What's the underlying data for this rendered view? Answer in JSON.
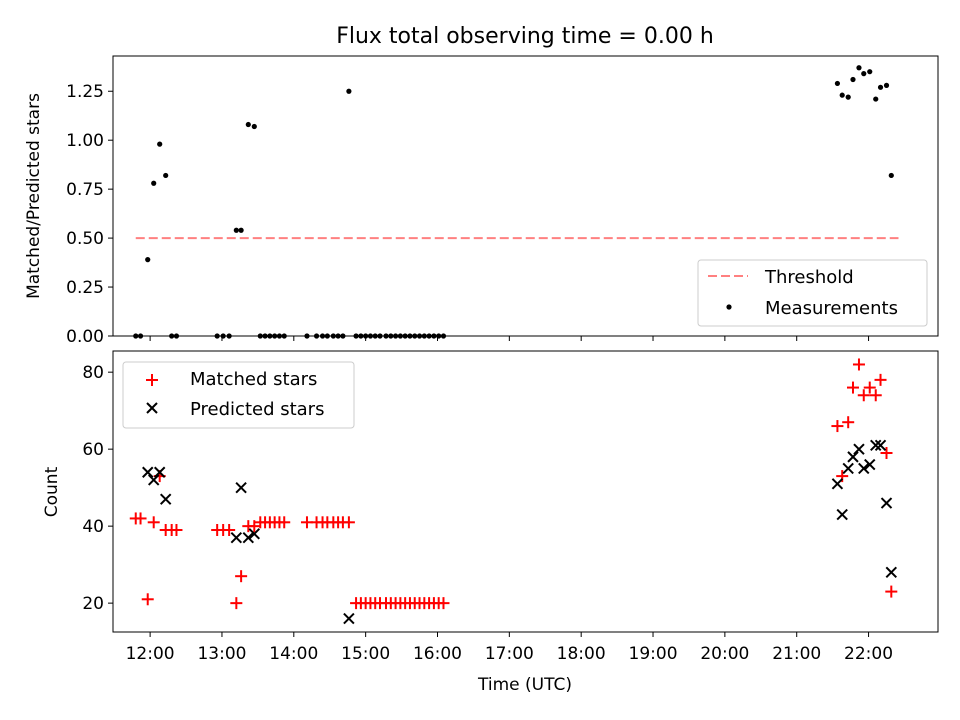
{
  "figure": {
    "title": "Flux total observing time = 0.00 h"
  },
  "chart_data": [
    {
      "type": "scatter",
      "title": "Flux total observing time = 0.00 h",
      "xlabel": "",
      "ylabel": "Matched/Predicted stars",
      "xlim": [
        "11:29",
        "22:58"
      ],
      "ylim": [
        0.0,
        1.43
      ],
      "yticks": [
        "0.00",
        "0.25",
        "0.50",
        "0.75",
        "1.00",
        "1.25"
      ],
      "legend_position": "lower right",
      "grid": false,
      "threshold": {
        "name": "Threshold",
        "value": 0.5,
        "x_range": [
          "11:48",
          "22:25"
        ],
        "color": "#ff8080",
        "style": "dashed"
      },
      "series": [
        {
          "name": "Measurements",
          "marker": "dot",
          "color": "#000000",
          "points": [
            [
              "11:48",
              0.0
            ],
            [
              "11:52",
              0.0
            ],
            [
              "11:58",
              0.39
            ],
            [
              "12:03",
              0.78
            ],
            [
              "12:08",
              0.98
            ],
            [
              "12:13",
              0.82
            ],
            [
              "12:18",
              0.0
            ],
            [
              "12:22",
              0.0
            ],
            [
              "12:56",
              0.0
            ],
            [
              "13:01",
              0.0
            ],
            [
              "13:06",
              0.0
            ],
            [
              "13:12",
              0.54
            ],
            [
              "13:16",
              0.54
            ],
            [
              "13:22",
              1.08
            ],
            [
              "13:27",
              1.07
            ],
            [
              "13:32",
              0.0
            ],
            [
              "13:36",
              0.0
            ],
            [
              "13:40",
              0.0
            ],
            [
              "13:44",
              0.0
            ],
            [
              "13:48",
              0.0
            ],
            [
              "13:52",
              0.0
            ],
            [
              "14:11",
              0.0
            ],
            [
              "14:19",
              0.0
            ],
            [
              "14:24",
              0.0
            ],
            [
              "14:28",
              0.0
            ],
            [
              "14:33",
              0.0
            ],
            [
              "14:37",
              0.0
            ],
            [
              "14:41",
              0.0
            ],
            [
              "14:46",
              1.25
            ],
            [
              "14:52",
              0.0
            ],
            [
              "14:56",
              0.0
            ],
            [
              "15:00",
              0.0
            ],
            [
              "15:04",
              0.0
            ],
            [
              "15:08",
              0.0
            ],
            [
              "15:12",
              0.0
            ],
            [
              "15:17",
              0.0
            ],
            [
              "15:21",
              0.0
            ],
            [
              "15:25",
              0.0
            ],
            [
              "15:29",
              0.0
            ],
            [
              "15:33",
              0.0
            ],
            [
              "15:37",
              0.0
            ],
            [
              "15:41",
              0.0
            ],
            [
              "15:45",
              0.0
            ],
            [
              "15:49",
              0.0
            ],
            [
              "15:53",
              0.0
            ],
            [
              "15:57",
              0.0
            ],
            [
              "16:01",
              0.0
            ],
            [
              "16:05",
              0.0
            ],
            [
              "21:34",
              1.29
            ],
            [
              "21:38",
              1.23
            ],
            [
              "21:43",
              1.22
            ],
            [
              "21:47",
              1.31
            ],
            [
              "21:52",
              1.37
            ],
            [
              "21:56",
              1.34
            ],
            [
              "22:01",
              1.35
            ],
            [
              "22:06",
              1.21
            ],
            [
              "22:10",
              1.27
            ],
            [
              "22:15",
              1.28
            ],
            [
              "22:19",
              0.82
            ]
          ]
        }
      ]
    },
    {
      "type": "scatter",
      "title": "",
      "xlabel": "Time (UTC)",
      "ylabel": "Count",
      "xlim": [
        "11:29",
        "22:58"
      ],
      "ylim": [
        12.5,
        85.5
      ],
      "yticks": [
        "20",
        "40",
        "60",
        "80"
      ],
      "xticks": [
        "12:00",
        "13:00",
        "14:00",
        "15:00",
        "16:00",
        "17:00",
        "18:00",
        "19:00",
        "20:00",
        "21:00",
        "22:00"
      ],
      "legend_position": "upper left",
      "grid": false,
      "series": [
        {
          "name": "Matched stars",
          "marker": "plus",
          "color": "#ff0000",
          "points": [
            [
              "11:48",
              42
            ],
            [
              "11:52",
              42
            ],
            [
              "11:58",
              21
            ],
            [
              "12:03",
              41
            ],
            [
              "12:08",
              53
            ],
            [
              "12:13",
              39
            ],
            [
              "12:18",
              39
            ],
            [
              "12:22",
              39
            ],
            [
              "12:56",
              39
            ],
            [
              "13:01",
              39
            ],
            [
              "13:06",
              39
            ],
            [
              "13:12",
              20
            ],
            [
              "13:16",
              27
            ],
            [
              "13:22",
              40
            ],
            [
              "13:27",
              40
            ],
            [
              "13:32",
              41
            ],
            [
              "13:36",
              41
            ],
            [
              "13:40",
              41
            ],
            [
              "13:44",
              41
            ],
            [
              "13:48",
              41
            ],
            [
              "13:52",
              41
            ],
            [
              "14:11",
              41
            ],
            [
              "14:19",
              41
            ],
            [
              "14:24",
              41
            ],
            [
              "14:28",
              41
            ],
            [
              "14:33",
              41
            ],
            [
              "14:37",
              41
            ],
            [
              "14:41",
              41
            ],
            [
              "14:46",
              41
            ],
            [
              "14:52",
              20
            ],
            [
              "14:56",
              20
            ],
            [
              "15:00",
              20
            ],
            [
              "15:04",
              20
            ],
            [
              "15:08",
              20
            ],
            [
              "15:12",
              20
            ],
            [
              "15:17",
              20
            ],
            [
              "15:21",
              20
            ],
            [
              "15:25",
              20
            ],
            [
              "15:29",
              20
            ],
            [
              "15:33",
              20
            ],
            [
              "15:37",
              20
            ],
            [
              "15:41",
              20
            ],
            [
              "15:45",
              20
            ],
            [
              "15:49",
              20
            ],
            [
              "15:53",
              20
            ],
            [
              "15:57",
              20
            ],
            [
              "16:01",
              20
            ],
            [
              "16:05",
              20
            ],
            [
              "21:34",
              66
            ],
            [
              "21:38",
              53
            ],
            [
              "21:43",
              67
            ],
            [
              "21:47",
              76
            ],
            [
              "21:52",
              82
            ],
            [
              "21:56",
              74
            ],
            [
              "22:01",
              76
            ],
            [
              "22:06",
              74
            ],
            [
              "22:10",
              78
            ],
            [
              "22:15",
              59
            ],
            [
              "22:19",
              23
            ]
          ]
        },
        {
          "name": "Predicted stars",
          "marker": "x",
          "color": "#000000",
          "points": [
            [
              "11:58",
              54
            ],
            [
              "12:03",
              52
            ],
            [
              "12:08",
              54
            ],
            [
              "12:13",
              47
            ],
            [
              "13:12",
              37
            ],
            [
              "13:16",
              50
            ],
            [
              "13:22",
              37
            ],
            [
              "13:27",
              38
            ],
            [
              "14:46",
              16
            ],
            [
              "21:34",
              51
            ],
            [
              "21:38",
              43
            ],
            [
              "21:43",
              55
            ],
            [
              "21:47",
              58
            ],
            [
              "21:52",
              60
            ],
            [
              "21:56",
              55
            ],
            [
              "22:01",
              56
            ],
            [
              "22:06",
              61
            ],
            [
              "22:10",
              61
            ],
            [
              "22:15",
              46
            ],
            [
              "22:19",
              28
            ]
          ]
        }
      ]
    }
  ]
}
